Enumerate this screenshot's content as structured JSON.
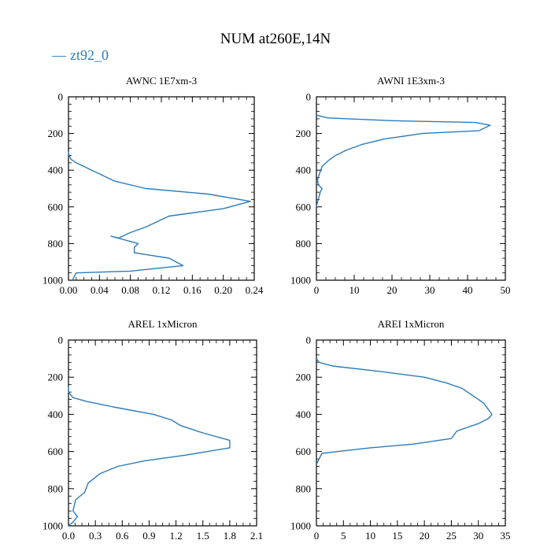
{
  "figure": {
    "title": "NUM at260E,14N",
    "legend_label": "zt92_0",
    "legend_glyph": "—",
    "line_color": "#2b7bba"
  },
  "chart_data": [
    {
      "type": "line",
      "title": "AWNC  1E7xm-3",
      "xlabel": "",
      "ylabel": "",
      "xlim": [
        0,
        0.24
      ],
      "ylim": [
        1000,
        0
      ],
      "xticks": [
        "0.00",
        "0.04",
        "0.08",
        "0.12",
        "0.16",
        "0.20",
        "0.24"
      ],
      "xtick_values": [
        0,
        0.04,
        0.08,
        0.12,
        0.16,
        0.2,
        0.24
      ],
      "yticks": [
        "0",
        "200",
        "400",
        "600",
        "800",
        "1000"
      ],
      "ytick_values": [
        0,
        200,
        400,
        600,
        800,
        1000
      ],
      "series": [
        {
          "name": "zt92_0",
          "x": [
            0.0,
            0.0,
            0.003,
            0.01,
            0.02,
            0.03,
            0.045,
            0.06,
            0.1,
            0.18,
            0.235,
            0.2,
            0.13,
            0.1,
            0.08,
            0.065,
            0.055,
            0.09,
            0.085,
            0.085,
            0.1,
            0.13,
            0.148,
            0.08,
            0.01,
            0.005
          ],
          "y": [
            300,
            310,
            340,
            360,
            380,
            400,
            430,
            460,
            500,
            530,
            570,
            610,
            650,
            710,
            740,
            770,
            760,
            800,
            820,
            850,
            860,
            880,
            920,
            950,
            960,
            1000
          ]
        }
      ]
    },
    {
      "type": "line",
      "title": "AWNI  1E3xm-3",
      "xlabel": "",
      "ylabel": "",
      "xlim": [
        0,
        50
      ],
      "ylim": [
        1000,
        0
      ],
      "xticks": [
        "0",
        "10",
        "20",
        "30",
        "40",
        "50"
      ],
      "xtick_values": [
        0,
        10,
        20,
        30,
        40,
        50
      ],
      "yticks": [
        "0",
        "200",
        "400",
        "600",
        "800",
        "1000"
      ],
      "ytick_values": [
        0,
        200,
        400,
        600,
        800,
        1000
      ],
      "series": [
        {
          "name": "zt92_0",
          "x": [
            0.0,
            3.0,
            20.0,
            42.0,
            46.0,
            43.0,
            28.0,
            18.0,
            12.0,
            8.0,
            5.0,
            3.0,
            1.5,
            0.8,
            0.3,
            0.5,
            1.5,
            1.0,
            0.5,
            0.2,
            0.0
          ],
          "y": [
            100,
            115,
            130,
            140,
            155,
            185,
            200,
            230,
            260,
            290,
            320,
            350,
            380,
            420,
            450,
            480,
            500,
            520,
            560,
            580,
            600
          ]
        }
      ]
    },
    {
      "type": "line",
      "title": "AREL  1xMicron",
      "xlabel": "",
      "ylabel": "",
      "xlim": [
        0,
        2.1
      ],
      "ylim": [
        1000,
        0
      ],
      "xticks": [
        "0.0",
        "0.3",
        "0.6",
        "0.9",
        "1.2",
        "1.5",
        "1.8",
        "2.1"
      ],
      "xtick_values": [
        0,
        0.3,
        0.6,
        0.9,
        1.2,
        1.5,
        1.8,
        2.1
      ],
      "yticks": [
        "0",
        "200",
        "400",
        "600",
        "800",
        "1000"
      ],
      "ytick_values": [
        0,
        200,
        400,
        600,
        800,
        1000
      ],
      "series": [
        {
          "name": "zt92_0",
          "x": [
            0.0,
            0.0,
            0.05,
            0.2,
            0.5,
            0.95,
            1.15,
            1.25,
            1.5,
            1.8,
            1.8,
            1.3,
            0.85,
            0.55,
            0.35,
            0.22,
            0.18,
            0.08,
            0.05,
            0.1,
            0.05,
            0.0
          ],
          "y": [
            250,
            280,
            310,
            330,
            360,
            400,
            430,
            460,
            500,
            540,
            580,
            620,
            650,
            680,
            720,
            770,
            820,
            860,
            920,
            950,
            980,
            1000
          ]
        }
      ]
    },
    {
      "type": "line",
      "title": "AREI  1xMicron",
      "xlabel": "",
      "ylabel": "",
      "xlim": [
        0,
        35
      ],
      "ylim": [
        1000,
        0
      ],
      "xticks": [
        "0",
        "5",
        "10",
        "15",
        "20",
        "25",
        "30",
        "35"
      ],
      "xtick_values": [
        0,
        5,
        10,
        15,
        20,
        25,
        30,
        35
      ],
      "yticks": [
        "0",
        "200",
        "400",
        "600",
        "800",
        "1000"
      ],
      "ytick_values": [
        0,
        200,
        400,
        600,
        800,
        1000
      ],
      "series": [
        {
          "name": "zt92_0",
          "x": [
            0.0,
            0.5,
            3.0,
            12.0,
            20.0,
            24.0,
            27.0,
            29.0,
            31.0,
            32.5,
            32.0,
            30.0,
            26.0,
            25.0,
            18.0,
            10.0,
            4.0,
            1.0,
            0.5,
            0.0
          ],
          "y": [
            100,
            120,
            140,
            170,
            200,
            230,
            260,
            300,
            340,
            400,
            420,
            450,
            490,
            530,
            560,
            580,
            600,
            610,
            640,
            670
          ]
        }
      ]
    }
  ]
}
